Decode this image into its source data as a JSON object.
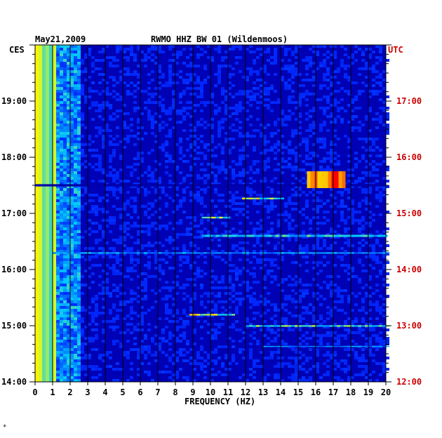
{
  "header": {
    "date": "May21,2009",
    "station": "RWMO HHZ BW 01 (Wildenmoos)"
  },
  "labels": {
    "left_tz": "CES",
    "right_tz": "UTC",
    "corner_mark": "*"
  },
  "chart_data": {
    "type": "heatmap",
    "title": "RWMO HHZ BW 01 (Wildenmoos)",
    "xlabel": "FREQUENCY (HZ)",
    "ylabel": "",
    "xlim": [
      0,
      20
    ],
    "x_ticks": [
      "0",
      "1",
      "2",
      "3",
      "4",
      "5",
      "6",
      "7",
      "8",
      "9",
      "10",
      "11",
      "12",
      "13",
      "14",
      "15",
      "16",
      "17",
      "18",
      "19",
      "20"
    ],
    "y_left_ticks": [
      "19:00",
      "18:00",
      "17:00",
      "16:00",
      "15:00",
      "14:00"
    ],
    "y_left_values": [
      19,
      18,
      17,
      16,
      15,
      14
    ],
    "y_right_ticks": [
      "17:00",
      "16:00",
      "15:00",
      "14:00",
      "13:00",
      "12:00"
    ],
    "ylim_local_hours": [
      14,
      20
    ],
    "colors": {
      "background": "#0000b4",
      "grid": "#000000",
      "low": "#0000ff",
      "mid": "#00c8ff",
      "high": "#ffff00",
      "peak": "#ff0000",
      "utc_label": "#cc0000"
    },
    "features": [
      {
        "name": "low-frequency noise band",
        "f_min": 0,
        "f_max": 1.2,
        "t_start": 14.0,
        "t_end": 20.0,
        "level": 0.85
      },
      {
        "name": "dark gap",
        "f_min": 0,
        "f_max": 20,
        "t_start": 17.48,
        "t_end": 17.52,
        "level": 0.0
      },
      {
        "name": "gliding event",
        "f_min": 15.5,
        "f_max": 17.5,
        "t_start": 17.45,
        "t_end": 17.75,
        "level": 0.95
      },
      {
        "name": "line 12-14Hz",
        "f_min": 11.8,
        "f_max": 14.0,
        "t_start": 17.25,
        "t_end": 17.28,
        "level": 0.75
      },
      {
        "name": "line 9-11Hz",
        "f_min": 9.5,
        "f_max": 11.0,
        "t_start": 16.91,
        "t_end": 16.94,
        "level": 0.7
      },
      {
        "name": "line broadband 16.6",
        "f_min": 9.5,
        "f_max": 20.0,
        "t_start": 16.58,
        "t_end": 16.62,
        "level": 0.6
      },
      {
        "name": "line broadband 16.3",
        "f_min": 1.0,
        "f_max": 20.0,
        "t_start": 16.28,
        "t_end": 16.31,
        "level": 0.5
      },
      {
        "name": "line 9-11Hz at 15.2",
        "f_min": 8.8,
        "f_max": 11.2,
        "t_start": 15.18,
        "t_end": 15.21,
        "level": 0.75
      },
      {
        "name": "line 12-20Hz at 15.0",
        "f_min": 12.0,
        "f_max": 20.0,
        "t_start": 14.98,
        "t_end": 15.01,
        "level": 0.65
      },
      {
        "name": "line 17-20Hz at 14.6",
        "f_min": 13.0,
        "f_max": 20.0,
        "t_start": 14.62,
        "t_end": 14.64,
        "level": 0.5
      }
    ]
  }
}
